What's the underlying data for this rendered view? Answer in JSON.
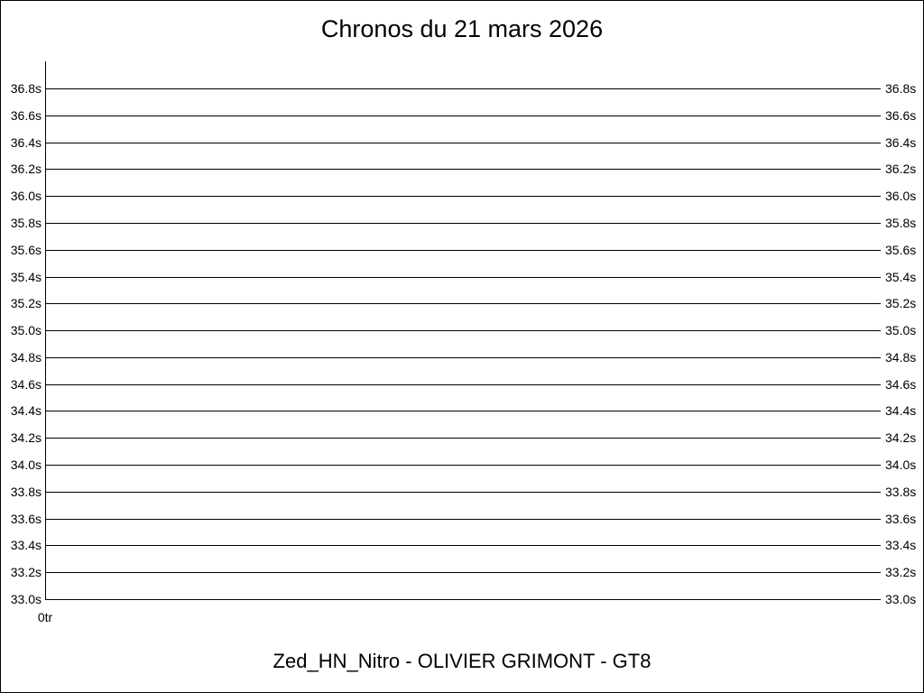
{
  "title": "Chronos du 21 mars 2026",
  "caption": "Zed_HN_Nitro - OLIVIER GRIMONT - GT8",
  "colors": {
    "background": "#ffffff",
    "grid": "#000000",
    "axis": "#000000",
    "text": "#000000",
    "frame_border": "#000000"
  },
  "chart_data": {
    "type": "line",
    "title": "Chronos du 21 mars 2026",
    "xlabel": "",
    "ylabel": "",
    "x_unit": "tr",
    "y_unit": "s",
    "x_tick_labels": [
      "0tr"
    ],
    "y_tick_labels": [
      "36.8s",
      "36.6s",
      "36.4s",
      "36.2s",
      "36.0s",
      "35.8s",
      "35.6s",
      "35.4s",
      "35.2s",
      "35.0s",
      "34.8s",
      "34.6s",
      "34.4s",
      "34.2s",
      "34.0s",
      "33.8s",
      "33.6s",
      "33.4s",
      "33.2s",
      "33.0s"
    ],
    "y_tick_values": [
      36.8,
      36.6,
      36.4,
      36.2,
      36.0,
      35.8,
      35.6,
      35.4,
      35.2,
      35.0,
      34.8,
      34.6,
      34.4,
      34.2,
      34.0,
      33.8,
      33.6,
      33.4,
      33.2,
      33.0
    ],
    "ylim": [
      33.0,
      37.0
    ],
    "y_tick_step": 0.2,
    "grid": true,
    "legend": false,
    "series": []
  }
}
